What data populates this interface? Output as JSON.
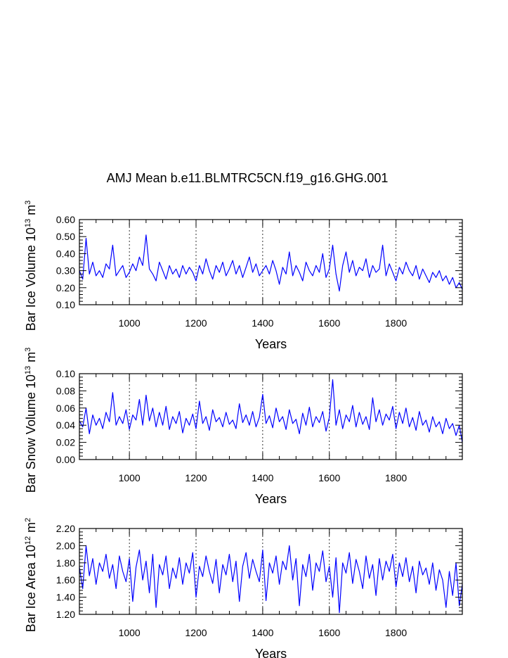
{
  "figure": {
    "title": "AMJ Mean b.e11.BLMTRC5CN.f19_g16.GHG.001",
    "series_color": "#0000ff"
  },
  "chart_data": [
    {
      "type": "line",
      "ylabel": "Bar Ice Volume 10",
      "ylabel_exp": "13",
      "ylabel_unit": " m",
      "ylabel_unit_exp": "3",
      "xlabel": "Years",
      "xlim": [
        850,
        1999
      ],
      "ylim": [
        0.1,
        0.6
      ],
      "x_ticks": [
        1000,
        1200,
        1400,
        1600,
        1800
      ],
      "y_ticks": [
        "0.10",
        "0.20",
        "0.30",
        "0.40",
        "0.50",
        "0.60"
      ],
      "gridlines_x": "dotted at major ticks",
      "series": [
        {
          "x": [
            850,
            860,
            870,
            880,
            890,
            900,
            910,
            920,
            930,
            940,
            950,
            960,
            970,
            980,
            990,
            1000,
            1010,
            1020,
            1030,
            1040,
            1050,
            1060,
            1070,
            1080,
            1090,
            1100,
            1110,
            1120,
            1130,
            1140,
            1150,
            1160,
            1170,
            1180,
            1190,
            1200,
            1210,
            1220,
            1230,
            1240,
            1250,
            1260,
            1270,
            1280,
            1290,
            1300,
            1310,
            1320,
            1330,
            1340,
            1350,
            1360,
            1370,
            1380,
            1390,
            1400,
            1410,
            1420,
            1430,
            1440,
            1450,
            1460,
            1470,
            1480,
            1490,
            1500,
            1510,
            1520,
            1530,
            1540,
            1550,
            1560,
            1570,
            1580,
            1590,
            1600,
            1610,
            1620,
            1630,
            1640,
            1650,
            1660,
            1670,
            1680,
            1690,
            1700,
            1710,
            1720,
            1730,
            1740,
            1750,
            1760,
            1770,
            1780,
            1790,
            1800,
            1810,
            1820,
            1830,
            1840,
            1850,
            1860,
            1870,
            1880,
            1890,
            1900,
            1910,
            1920,
            1930,
            1940,
            1950,
            1960,
            1970,
            1980,
            1990,
            1999
          ],
          "y": [
            0.3,
            0.25,
            0.49,
            0.28,
            0.35,
            0.27,
            0.3,
            0.26,
            0.34,
            0.31,
            0.45,
            0.27,
            0.3,
            0.33,
            0.26,
            0.29,
            0.34,
            0.3,
            0.38,
            0.33,
            0.51,
            0.31,
            0.28,
            0.24,
            0.35,
            0.3,
            0.25,
            0.33,
            0.28,
            0.31,
            0.26,
            0.33,
            0.28,
            0.32,
            0.29,
            0.24,
            0.33,
            0.28,
            0.37,
            0.3,
            0.25,
            0.33,
            0.29,
            0.35,
            0.27,
            0.31,
            0.36,
            0.28,
            0.33,
            0.26,
            0.32,
            0.38,
            0.29,
            0.34,
            0.27,
            0.3,
            0.33,
            0.28,
            0.36,
            0.3,
            0.22,
            0.32,
            0.28,
            0.41,
            0.27,
            0.33,
            0.29,
            0.24,
            0.35,
            0.3,
            0.27,
            0.33,
            0.29,
            0.4,
            0.26,
            0.31,
            0.45,
            0.28,
            0.18,
            0.33,
            0.41,
            0.29,
            0.36,
            0.27,
            0.32,
            0.3,
            0.37,
            0.26,
            0.33,
            0.29,
            0.31,
            0.45,
            0.27,
            0.34,
            0.29,
            0.24,
            0.32,
            0.28,
            0.35,
            0.3,
            0.27,
            0.33,
            0.25,
            0.31,
            0.27,
            0.23,
            0.29,
            0.26,
            0.3,
            0.24,
            0.27,
            0.22,
            0.26,
            0.2,
            0.23,
            0.19
          ]
        }
      ]
    },
    {
      "type": "line",
      "ylabel": "Bar Snow Volume 10",
      "ylabel_exp": "13",
      "ylabel_unit": " m",
      "ylabel_unit_exp": "3",
      "xlabel": "Years",
      "xlim": [
        850,
        1999
      ],
      "ylim": [
        0.0,
        0.1
      ],
      "x_ticks": [
        1000,
        1200,
        1400,
        1600,
        1800
      ],
      "y_ticks": [
        "0.00",
        "0.02",
        "0.04",
        "0.06",
        "0.08",
        "0.10"
      ],
      "gridlines_x": "dotted at major ticks",
      "series": [
        {
          "x": [
            850,
            860,
            870,
            880,
            890,
            900,
            910,
            920,
            930,
            940,
            950,
            960,
            970,
            980,
            990,
            1000,
            1010,
            1020,
            1030,
            1040,
            1050,
            1060,
            1070,
            1080,
            1090,
            1100,
            1110,
            1120,
            1130,
            1140,
            1150,
            1160,
            1170,
            1180,
            1190,
            1200,
            1210,
            1220,
            1230,
            1240,
            1250,
            1260,
            1270,
            1280,
            1290,
            1300,
            1310,
            1320,
            1330,
            1340,
            1350,
            1360,
            1370,
            1380,
            1390,
            1400,
            1410,
            1420,
            1430,
            1440,
            1450,
            1460,
            1470,
            1480,
            1490,
            1500,
            1510,
            1520,
            1530,
            1540,
            1550,
            1560,
            1570,
            1580,
            1590,
            1600,
            1610,
            1620,
            1630,
            1640,
            1650,
            1660,
            1670,
            1680,
            1690,
            1700,
            1710,
            1720,
            1730,
            1740,
            1750,
            1760,
            1770,
            1780,
            1790,
            1800,
            1810,
            1820,
            1830,
            1840,
            1850,
            1860,
            1870,
            1880,
            1890,
            1900,
            1910,
            1920,
            1930,
            1940,
            1950,
            1960,
            1970,
            1980,
            1990,
            1999
          ],
          "y": [
            0.045,
            0.038,
            0.06,
            0.03,
            0.052,
            0.04,
            0.048,
            0.036,
            0.055,
            0.044,
            0.078,
            0.04,
            0.05,
            0.042,
            0.058,
            0.035,
            0.052,
            0.046,
            0.07,
            0.04,
            0.075,
            0.045,
            0.06,
            0.038,
            0.055,
            0.04,
            0.062,
            0.035,
            0.05,
            0.042,
            0.056,
            0.031,
            0.048,
            0.04,
            0.053,
            0.036,
            0.068,
            0.042,
            0.05,
            0.034,
            0.058,
            0.044,
            0.049,
            0.038,
            0.055,
            0.041,
            0.046,
            0.036,
            0.065,
            0.043,
            0.052,
            0.04,
            0.056,
            0.038,
            0.049,
            0.076,
            0.042,
            0.051,
            0.037,
            0.06,
            0.044,
            0.05,
            0.035,
            0.058,
            0.042,
            0.047,
            0.03,
            0.054,
            0.04,
            0.061,
            0.038,
            0.05,
            0.043,
            0.056,
            0.033,
            0.049,
            0.093,
            0.04,
            0.058,
            0.036,
            0.052,
            0.044,
            0.063,
            0.038,
            0.055,
            0.041,
            0.05,
            0.035,
            0.072,
            0.044,
            0.058,
            0.04,
            0.053,
            0.046,
            0.062,
            0.036,
            0.055,
            0.042,
            0.06,
            0.038,
            0.049,
            0.034,
            0.056,
            0.04,
            0.046,
            0.032,
            0.05,
            0.038,
            0.044,
            0.03,
            0.048,
            0.036,
            0.042,
            0.028,
            0.04,
            0.02
          ]
        }
      ]
    },
    {
      "type": "line",
      "ylabel": "Bar Ice Area 10",
      "ylabel_exp": "12",
      "ylabel_unit": " m",
      "ylabel_unit_exp": "2",
      "xlabel": "Years",
      "xlim": [
        850,
        1999
      ],
      "ylim": [
        1.2,
        2.2
      ],
      "x_ticks": [
        1000,
        1200,
        1400,
        1600,
        1800
      ],
      "y_ticks": [
        "1.20",
        "1.40",
        "1.60",
        "1.80",
        "2.00",
        "2.20"
      ],
      "gridlines_x": "dotted at major ticks",
      "series": [
        {
          "x": [
            850,
            860,
            870,
            880,
            890,
            900,
            910,
            920,
            930,
            940,
            950,
            960,
            970,
            980,
            990,
            1000,
            1010,
            1020,
            1030,
            1040,
            1050,
            1060,
            1070,
            1080,
            1090,
            1100,
            1110,
            1120,
            1130,
            1140,
            1150,
            1160,
            1170,
            1180,
            1190,
            1200,
            1210,
            1220,
            1230,
            1240,
            1250,
            1260,
            1270,
            1280,
            1290,
            1300,
            1310,
            1320,
            1330,
            1340,
            1350,
            1360,
            1370,
            1380,
            1390,
            1400,
            1410,
            1420,
            1430,
            1440,
            1450,
            1460,
            1470,
            1480,
            1490,
            1500,
            1510,
            1520,
            1530,
            1540,
            1550,
            1560,
            1570,
            1580,
            1590,
            1600,
            1610,
            1620,
            1630,
            1640,
            1650,
            1660,
            1670,
            1680,
            1690,
            1700,
            1710,
            1720,
            1730,
            1740,
            1750,
            1760,
            1770,
            1780,
            1790,
            1800,
            1810,
            1820,
            1830,
            1840,
            1850,
            1860,
            1870,
            1880,
            1890,
            1900,
            1910,
            1920,
            1930,
            1940,
            1950,
            1960,
            1970,
            1980,
            1990,
            1999
          ],
          "y": [
            1.75,
            1.5,
            2.0,
            1.65,
            1.85,
            1.55,
            1.8,
            1.7,
            1.9,
            1.62,
            1.78,
            1.5,
            1.88,
            1.7,
            1.58,
            1.85,
            1.35,
            1.75,
            1.95,
            1.6,
            1.82,
            1.45,
            1.9,
            1.28,
            1.78,
            1.66,
            1.88,
            1.5,
            1.74,
            1.62,
            1.86,
            1.55,
            1.8,
            1.68,
            1.92,
            1.4,
            1.76,
            1.64,
            1.88,
            1.7,
            1.56,
            1.84,
            1.45,
            1.78,
            1.66,
            1.9,
            1.58,
            1.82,
            1.35,
            1.76,
            1.92,
            1.62,
            1.84,
            1.7,
            1.58,
            1.95,
            1.36,
            1.8,
            1.68,
            1.88,
            1.55,
            1.82,
            1.72,
            2.0,
            1.6,
            1.85,
            1.3,
            1.78,
            1.64,
            1.9,
            1.48,
            1.8,
            1.7,
            1.94,
            1.58,
            1.76,
            1.4,
            1.86,
            1.22,
            1.8,
            1.68,
            1.92,
            1.56,
            1.84,
            1.7,
            1.5,
            1.88,
            1.62,
            1.78,
            1.42,
            1.85,
            1.6,
            1.82,
            1.7,
            1.9,
            1.52,
            1.8,
            1.64,
            1.86,
            1.58,
            1.76,
            1.45,
            1.82,
            1.66,
            1.74,
            1.55,
            1.8,
            1.48,
            1.72,
            1.6,
            1.28,
            1.7,
            1.42,
            1.8,
            1.3,
            1.55
          ]
        }
      ]
    }
  ]
}
